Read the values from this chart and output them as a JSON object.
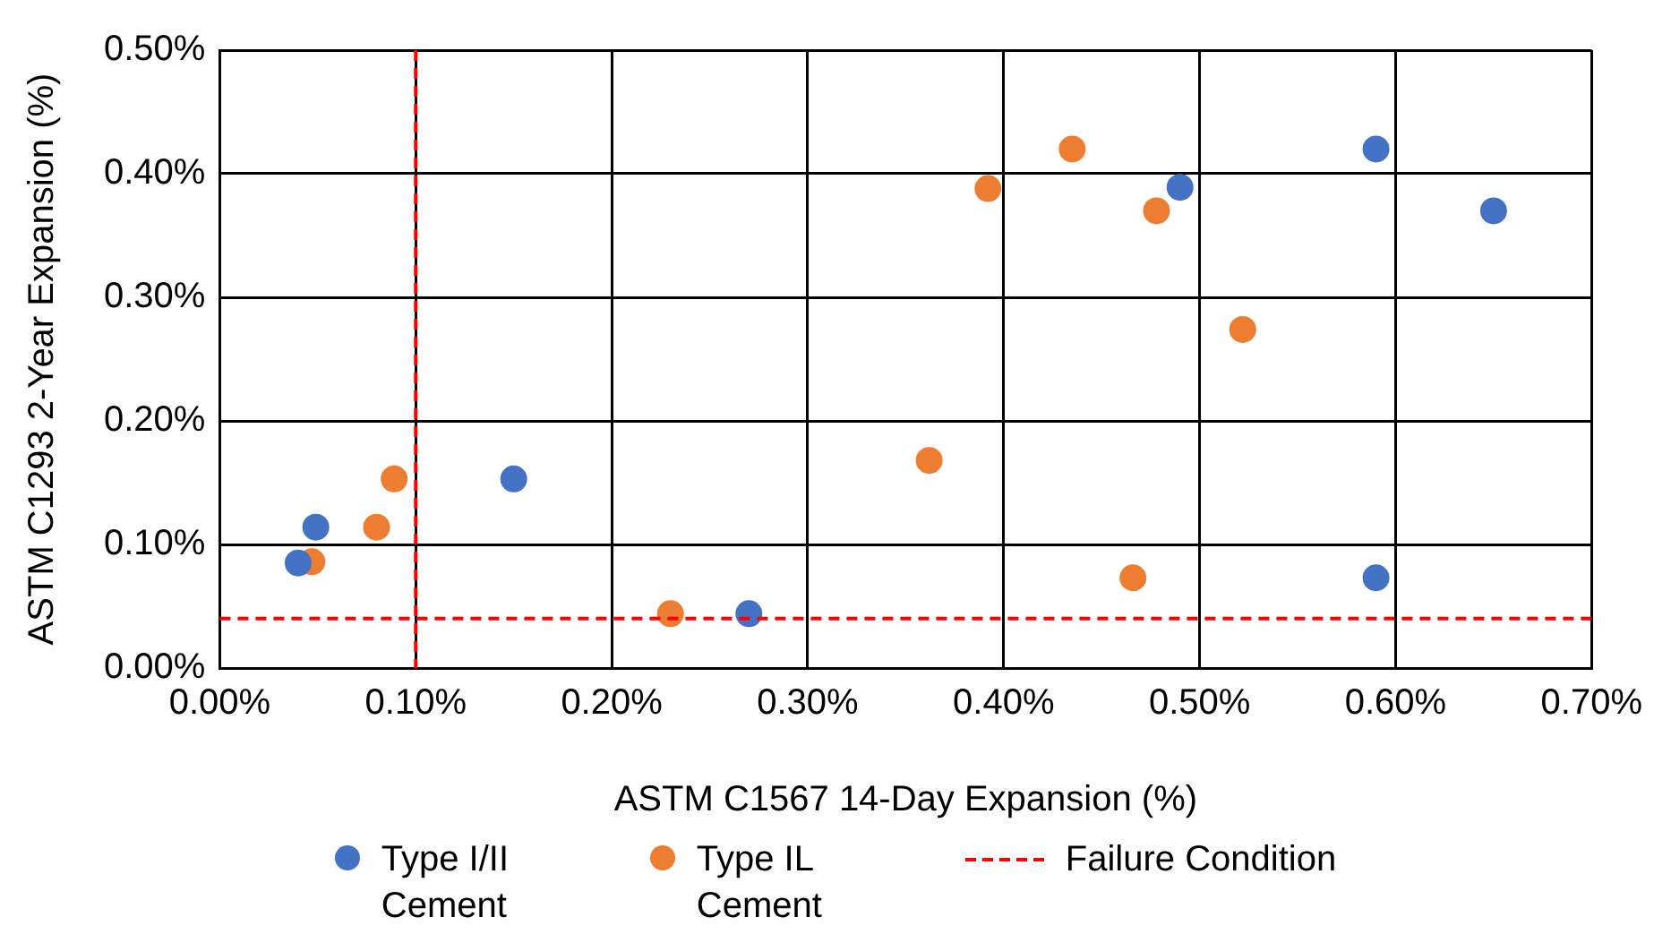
{
  "chart_data": {
    "type": "scatter",
    "xlabel": "ASTM C1567 14-Day Expansion (%)",
    "ylabel": "ASTM C1293 2-Year Expansion (%)",
    "xlim": [
      0,
      0.7
    ],
    "ylim": [
      0,
      0.5
    ],
    "xticks": [
      {
        "value": 0,
        "label": "0.00%"
      },
      {
        "value": 0.1,
        "label": "0.10%"
      },
      {
        "value": 0.2,
        "label": "0.20%"
      },
      {
        "value": 0.3,
        "label": "0.30%"
      },
      {
        "value": 0.4,
        "label": "0.40%"
      },
      {
        "value": 0.5,
        "label": "0.50%"
      },
      {
        "value": 0.6,
        "label": "0.60%"
      },
      {
        "value": 0.7,
        "label": "0.70%"
      }
    ],
    "yticks": [
      {
        "value": 0,
        "label": "0.00%"
      },
      {
        "value": 0.1,
        "label": "0.10%"
      },
      {
        "value": 0.2,
        "label": "0.20%"
      },
      {
        "value": 0.3,
        "label": "0.30%"
      },
      {
        "value": 0.4,
        "label": "0.40%"
      },
      {
        "value": 0.5,
        "label": "0.50%"
      }
    ],
    "grid": true,
    "legend": "bottom",
    "marker": "circle",
    "series": [
      {
        "name": "Type I/II Cement",
        "color": "#4472c4",
        "x": [
          0.04,
          0.049,
          0.15,
          0.27,
          0.49,
          0.59,
          0.65,
          0.59
        ],
        "values": [
          0.085,
          0.114,
          0.153,
          0.044,
          0.389,
          0.42,
          0.37,
          0.073
        ]
      },
      {
        "name": "Type IL Cement",
        "color": "#ed7d31",
        "x": [
          0.047,
          0.08,
          0.089,
          0.23,
          0.362,
          0.392,
          0.435,
          0.478,
          0.522,
          0.466
        ],
        "values": [
          0.086,
          0.114,
          0.153,
          0.044,
          0.168,
          0.388,
          0.42,
          0.37,
          0.274,
          0.073
        ]
      }
    ],
    "ref_lines": [
      {
        "axis": "x",
        "value": 0.1,
        "label": "Failure Condition",
        "color": "#ff0000",
        "line_style": "dashed"
      },
      {
        "axis": "y",
        "value": 0.04,
        "color": "#ff0000",
        "line_style": "dashed"
      }
    ]
  }
}
